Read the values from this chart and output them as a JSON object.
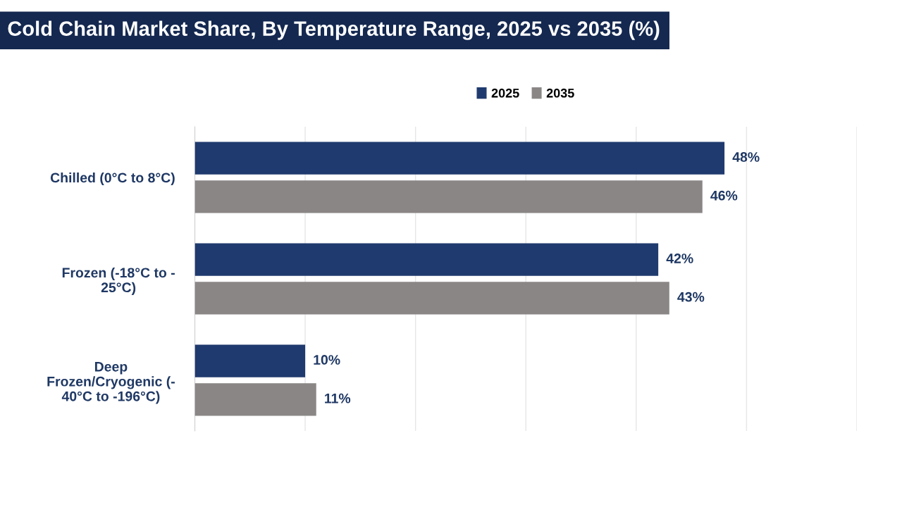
{
  "chart_data": {
    "type": "bar",
    "orientation": "horizontal",
    "title": "Cold Chain Market Share, By Temperature Range, 2025 vs 2035 (%)",
    "categories": [
      "Chilled (0°C to 8°C)",
      "Frozen (-18°C to -\n25°C)",
      "Deep\nFrozen/Cryogenic (-\n40°C to -196°C)"
    ],
    "series": [
      {
        "name": "2025",
        "color": "#1f3a6e",
        "values": [
          48,
          42,
          10
        ],
        "value_labels": [
          "48%",
          "42%",
          "10%"
        ]
      },
      {
        "name": "2035",
        "color": "#8a8686",
        "values": [
          46,
          43,
          11
        ],
        "value_labels": [
          "46%",
          "43%",
          "11%"
        ]
      }
    ],
    "xlim": [
      0,
      60
    ],
    "xticks": [
      {
        "value": 0,
        "label": null
      },
      {
        "value": 10,
        "label": null
      },
      {
        "value": 20,
        "label": null
      },
      {
        "value": 30,
        "label": null
      },
      {
        "value": 40,
        "label": null
      },
      {
        "value": 50,
        "label": null
      },
      {
        "value": 60,
        "label": null
      }
    ],
    "tick_labels": "y",
    "grid": "x",
    "legend": "top"
  }
}
